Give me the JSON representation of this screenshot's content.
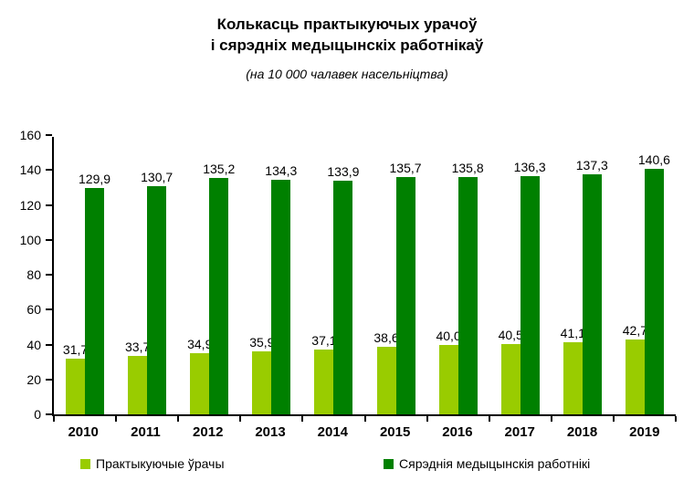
{
  "header": {
    "title": "Колькасць практыкуючых урачоў\nі сярэдніх медыцынскіх работнікаў",
    "subtitle": "(на 10 000 чалавек насельніцтва)"
  },
  "chart_data": {
    "type": "bar",
    "title": "Колькасць практыкуючых урачоў і сярэдніх медыцынскіх работнікаў",
    "subtitle": "(на 10 000 чалавек насельніцтва)",
    "categories": [
      "2010",
      "2011",
      "2012",
      "2013",
      "2014",
      "2015",
      "2016",
      "2017",
      "2018",
      "2019"
    ],
    "series": [
      {
        "name": "Практыкуючые ўрачы",
        "color": "#99CC00",
        "values": [
          31.7,
          33.7,
          34.9,
          35.9,
          37.1,
          38.6,
          40.0,
          40.5,
          41.1,
          42.7
        ],
        "labels": [
          "31,7",
          "33,7",
          "34,9",
          "35,9",
          "37,1",
          "38,6",
          "40,0",
          "40,5",
          "41,1",
          "42,7"
        ]
      },
      {
        "name": "Сярэднія медыцынскія работнікі",
        "color": "#008000",
        "values": [
          129.9,
          130.7,
          135.2,
          134.3,
          133.9,
          135.7,
          135.8,
          136.3,
          137.3,
          140.6
        ],
        "labels": [
          "129,9",
          "130,7",
          "135,2",
          "134,3",
          "133,9",
          "135,7",
          "135,8",
          "136,3",
          "137,3",
          "140,6"
        ]
      }
    ],
    "ylim": [
      0,
      160
    ],
    "ytick_step": 20,
    "grid": false,
    "legend_position": "bottom",
    "xlabel": "",
    "ylabel": ""
  }
}
